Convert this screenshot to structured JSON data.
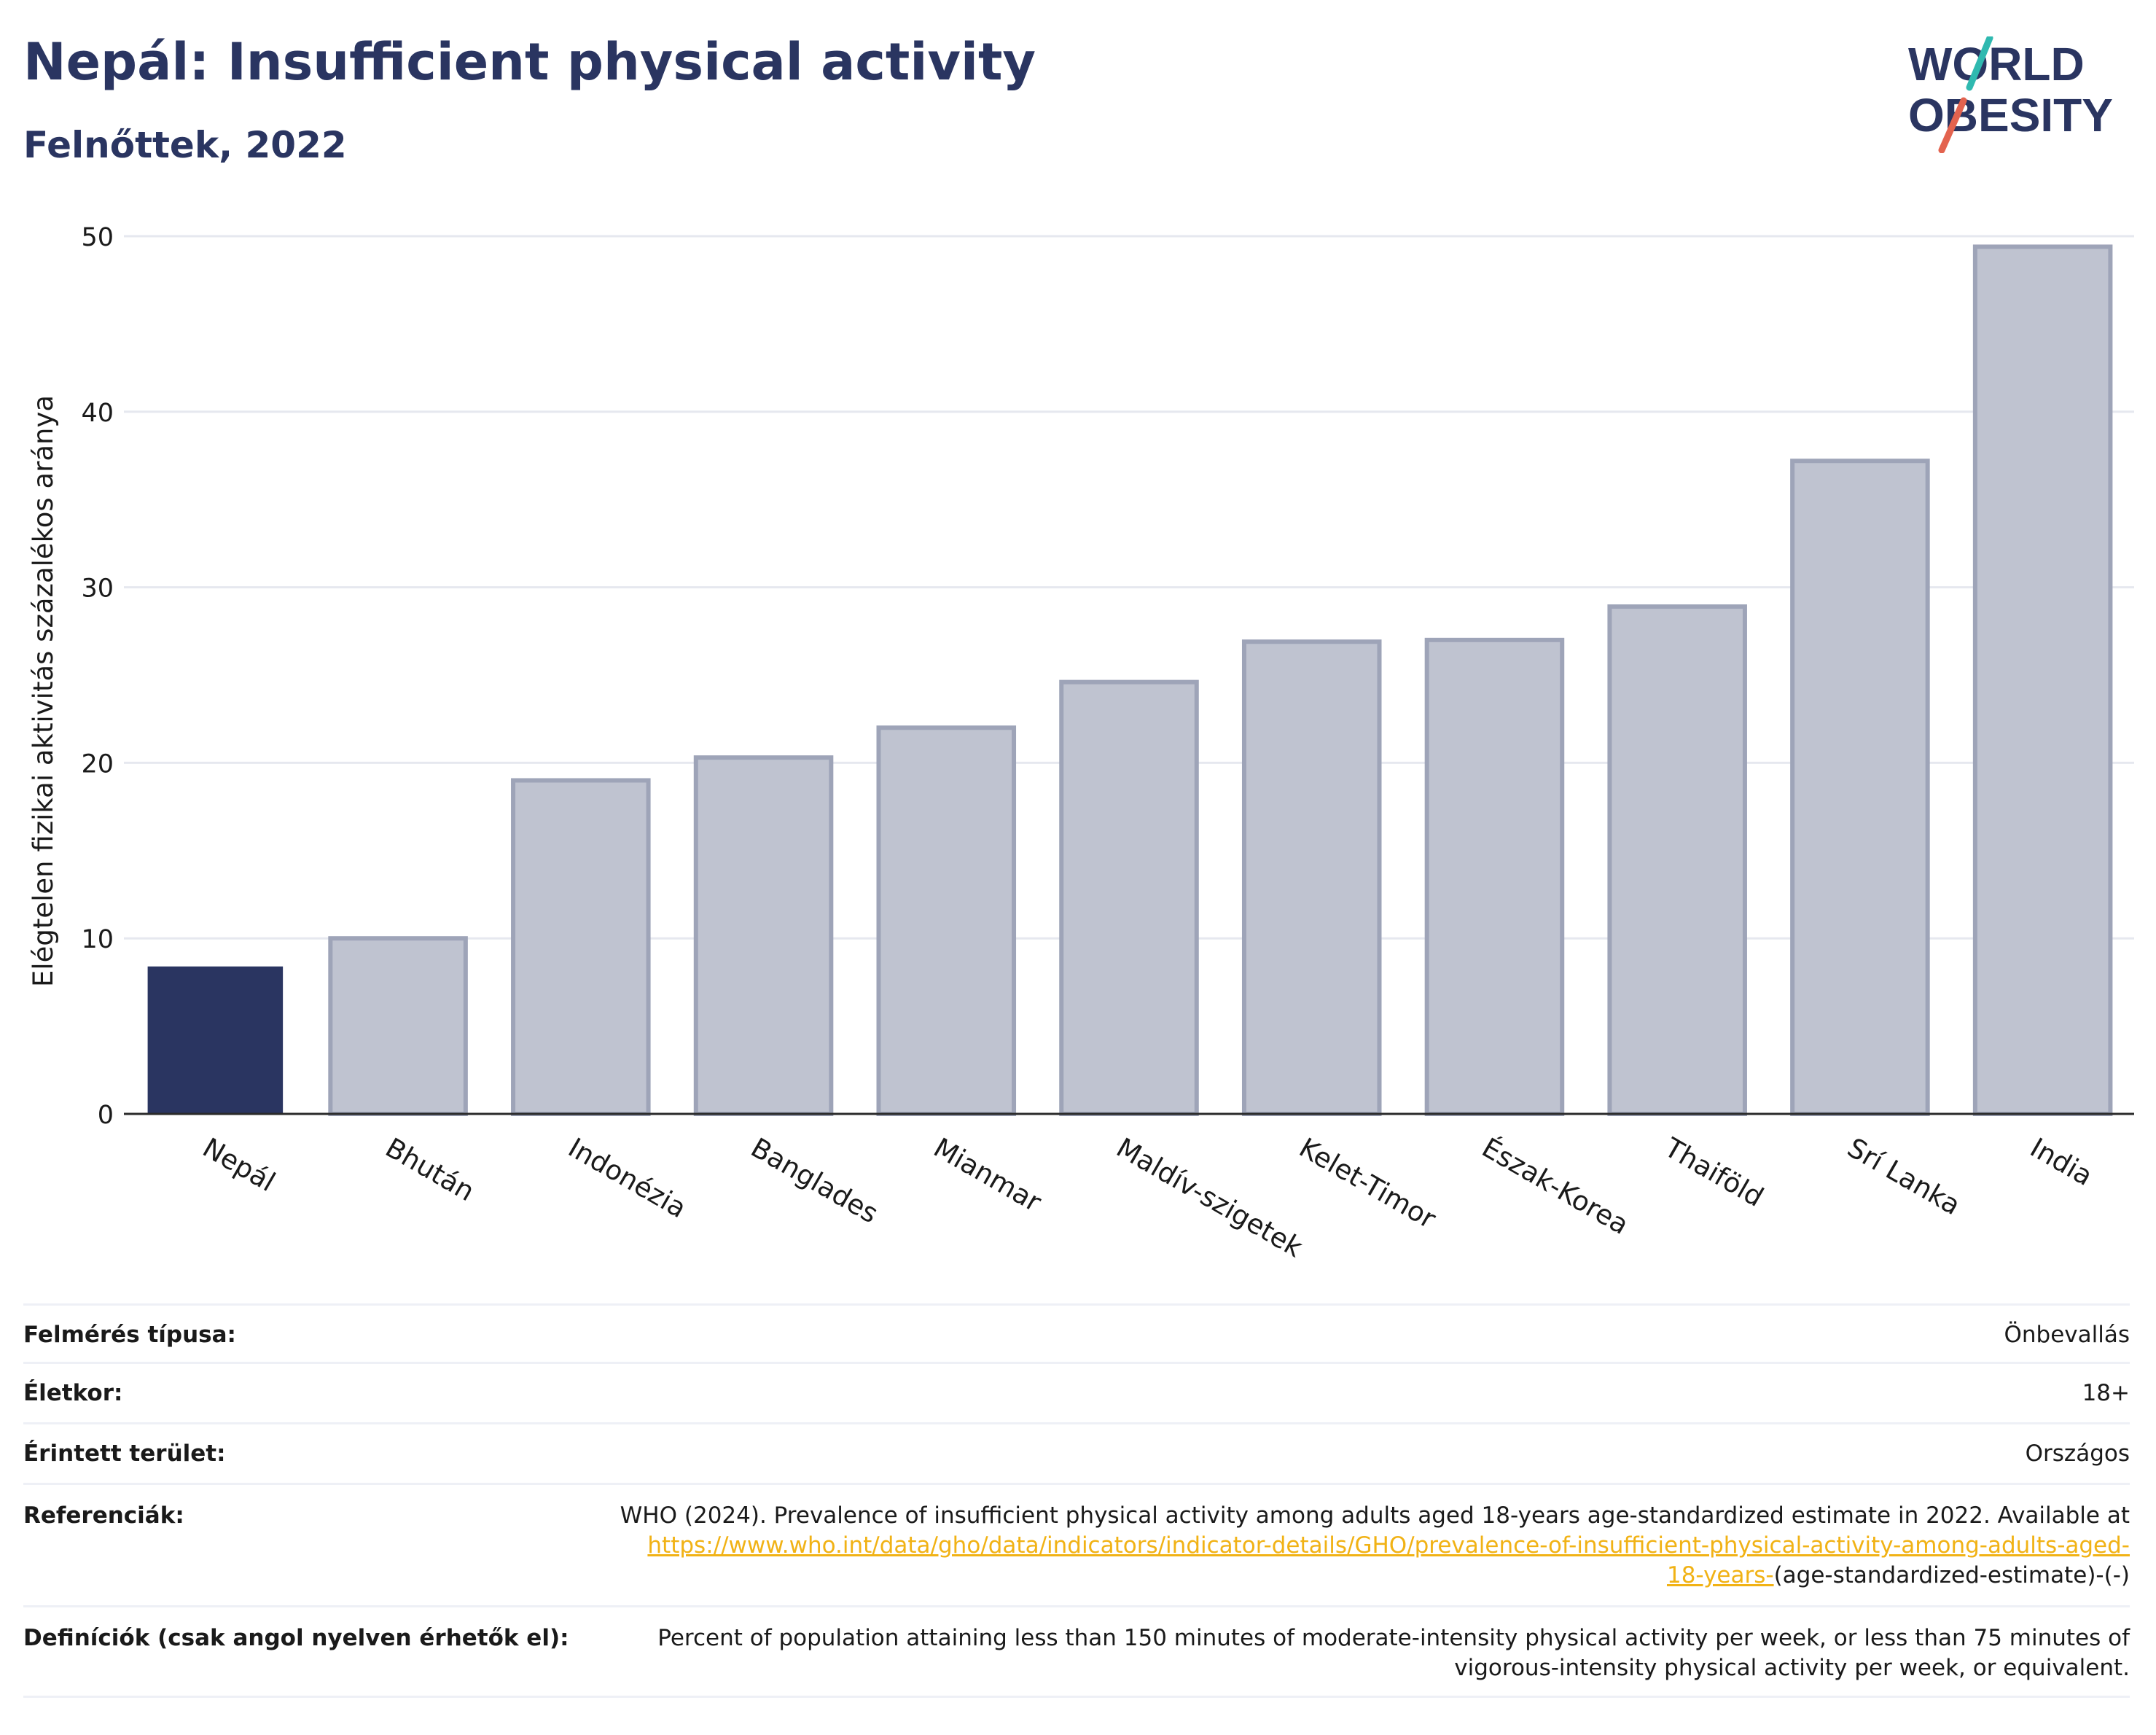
{
  "header": {
    "title": "Nepál: Insufficient physical activity",
    "subtitle": "Felnőttek, 2022"
  },
  "logo": {
    "line1": "WORLD",
    "line2": "OBESITY",
    "accent_teal": "#2fb9b0",
    "accent_red": "#e3634f",
    "text_color": "#2a3561"
  },
  "chart_data": {
    "type": "bar",
    "categories": [
      "Nepál",
      "Bhután",
      "Indonézia",
      "Banglades",
      "Mianmar",
      "Maldív-szigetek",
      "Kelet-Timor",
      "Észak-Korea",
      "Thaiföld",
      "Srí Lanka",
      "India"
    ],
    "values": [
      8.4,
      10.0,
      19.0,
      20.3,
      22.0,
      24.6,
      26.9,
      27.0,
      28.9,
      37.2,
      49.4
    ],
    "highlight": "Nepál",
    "ylabel": "Elégtelen fizikai aktivitás százalékos aránya",
    "xlabel": "",
    "ylim": [
      0,
      50
    ],
    "yticks": [
      0,
      10,
      20,
      30,
      40,
      50
    ],
    "grid": true,
    "colors": {
      "highlight": "#2a3561",
      "other": "#bfc3d0",
      "other_border": "#9ea4b8"
    }
  },
  "table": {
    "rows": [
      {
        "label": "Felmérés típusa:",
        "value": "Önbevallás"
      },
      {
        "label": "Életkor:",
        "value": "18+"
      },
      {
        "label": "Érintett terület:",
        "value": "Országos"
      }
    ],
    "references": {
      "label": "Referenciák:",
      "text": "WHO (2024). Prevalence of insufficient physical activity among adults aged 18-years age-standardized estimate in 2022. Available at",
      "link_1": "https://www.who.int/data/gho/data/indicators/indicator-details/GHO/prevalence-of-insufficient-physical-activity-among-adults-aged-",
      "link_2": "18-years-",
      "tail": "(age-standardized-estimate)-(-)"
    },
    "definitions": {
      "label": "Definíciók (csak angol nyelven érhetők el):",
      "text": "Percent of population attaining less than 150 minutes of moderate-intensity physical activity per week, or less than 75 minutes of vigorous-intensity physical activity per week, or equivalent."
    }
  }
}
